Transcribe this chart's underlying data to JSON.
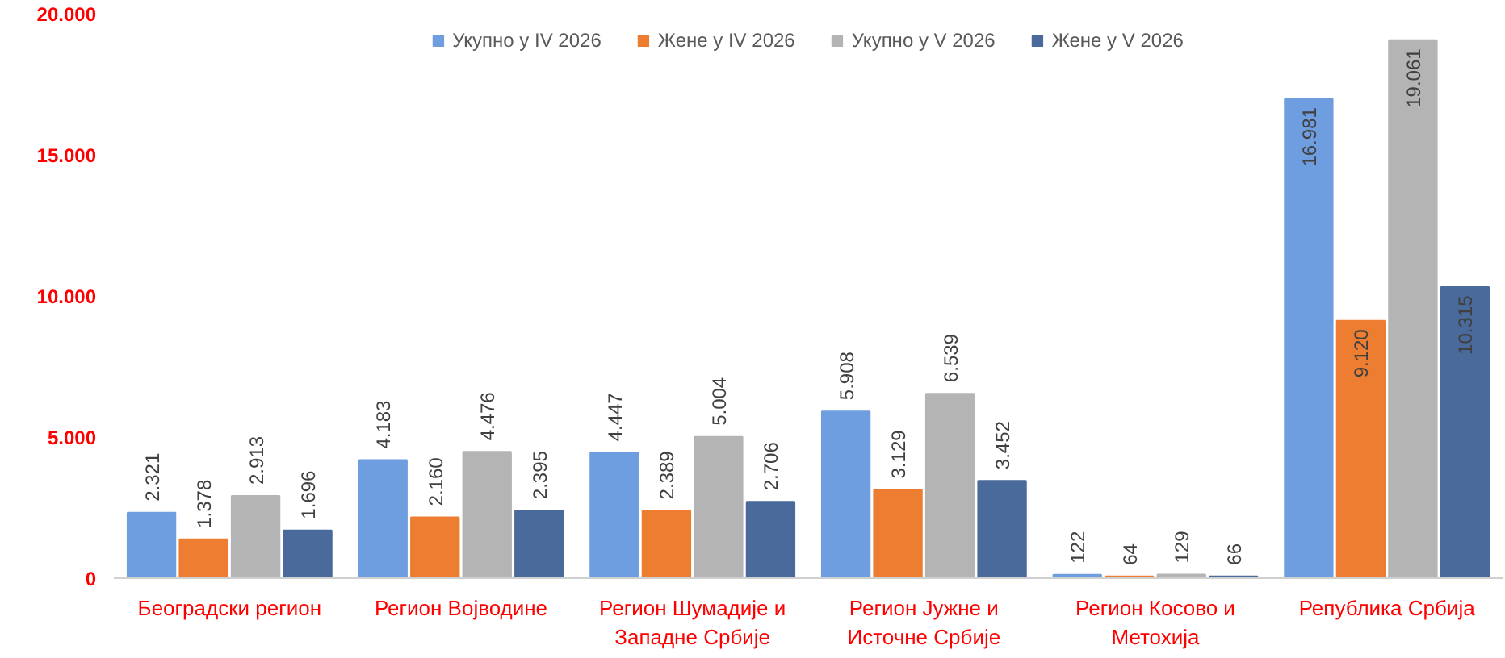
{
  "chart_data": {
    "type": "bar",
    "categories": [
      "Београдски регион",
      "Регион Војводине",
      "Регион Шумадије и Западне Србије",
      "Регион Јужне и Источне Србије",
      "Регион Косово и Метохија",
      "Република Србија"
    ],
    "series": [
      {
        "name": "Укупно у IV 2026",
        "color": "#6f9ee0",
        "values": [
          2321,
          4183,
          4447,
          5908,
          122,
          16981
        ],
        "value_labels": [
          "2.321",
          "4.183",
          "4.447",
          "5.908",
          "122",
          "16.981"
        ]
      },
      {
        "name": "Жене у IV 2026",
        "color": "#ed7d31",
        "values": [
          1378,
          2160,
          2389,
          3129,
          64,
          9120
        ],
        "value_labels": [
          "1.378",
          "2.160",
          "2.389",
          "3.129",
          "64",
          "9.120"
        ]
      },
      {
        "name": "Укупно у V 2026",
        "color": "#b4b4b4",
        "values": [
          2913,
          4476,
          5004,
          6539,
          129,
          19061
        ],
        "value_labels": [
          "2.913",
          "4.476",
          "5.004",
          "6.539",
          "129",
          "19.061"
        ]
      },
      {
        "name": "Жене у V 2026",
        "color": "#4a6a9c",
        "values": [
          1696,
          2395,
          2706,
          3452,
          66,
          10315
        ],
        "value_labels": [
          "1.696",
          "2.395",
          "2.706",
          "3.452",
          "66",
          "10.315"
        ]
      }
    ],
    "ylim": [
      0,
      20000
    ],
    "yticks": [
      {
        "value": 0,
        "label": "0"
      },
      {
        "value": 5000,
        "label": "5.000"
      },
      {
        "value": 10000,
        "label": "10.000"
      },
      {
        "value": 15000,
        "label": "15.000"
      },
      {
        "value": 20000,
        "label": "20.000"
      }
    ],
    "legend": "top"
  }
}
